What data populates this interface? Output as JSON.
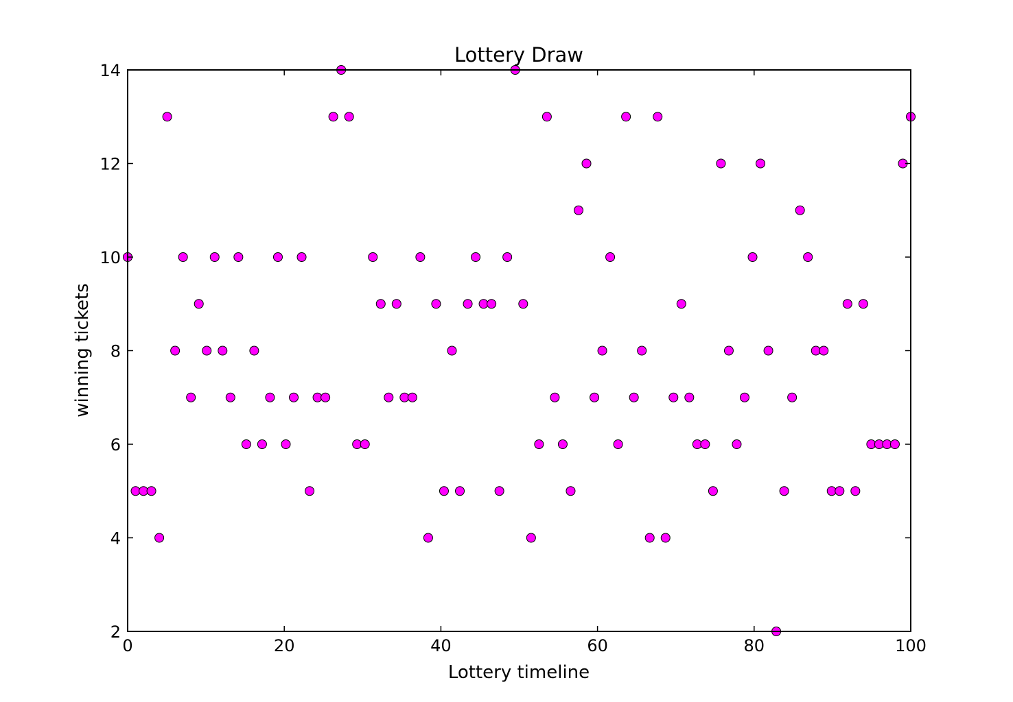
{
  "chart_data": {
    "type": "scatter",
    "title": "Lottery Draw",
    "xlabel": "Lottery timeline",
    "ylabel": "winning tickets",
    "xlim": [
      0,
      100
    ],
    "ylim": [
      2,
      14
    ],
    "x_ticks": [
      "0",
      "20",
      "40",
      "60",
      "80",
      "100"
    ],
    "y_ticks": [
      "2",
      "4",
      "6",
      "8",
      "10",
      "12",
      "14"
    ],
    "grid": false,
    "marker_color": "#ff00ff",
    "marker_edge_color": "#000000",
    "x": [
      0,
      1.01,
      2.02,
      3.03,
      4.04,
      5.05,
      6.06,
      7.07,
      8.08,
      9.09,
      10.1,
      11.11,
      12.12,
      13.13,
      14.14,
      15.15,
      16.16,
      17.17,
      18.18,
      19.19,
      20.2,
      21.21,
      22.22,
      23.23,
      24.24,
      25.25,
      26.26,
      27.27,
      28.28,
      29.29,
      30.3,
      31.31,
      32.32,
      33.33,
      34.34,
      35.35,
      36.36,
      37.37,
      38.38,
      39.39,
      40.4,
      41.41,
      42.42,
      43.43,
      44.44,
      45.45,
      46.46,
      47.47,
      48.48,
      49.49,
      50.51,
      51.52,
      52.53,
      53.54,
      54.55,
      55.56,
      56.57,
      57.58,
      58.59,
      59.6,
      60.61,
      61.62,
      62.63,
      63.64,
      64.65,
      65.66,
      66.67,
      67.68,
      68.69,
      69.7,
      70.71,
      71.72,
      72.73,
      73.74,
      74.75,
      75.76,
      76.77,
      77.78,
      78.79,
      79.8,
      80.81,
      81.82,
      82.83,
      83.84,
      84.85,
      85.86,
      86.87,
      87.88,
      88.89,
      89.9,
      90.91,
      91.92,
      92.93,
      93.94,
      94.95,
      95.96,
      96.97,
      97.98,
      98.99,
      100
    ],
    "y": [
      10,
      5,
      5,
      5,
      4,
      13,
      8,
      10,
      7,
      9,
      8,
      10,
      8,
      7,
      10,
      6,
      8,
      6,
      7,
      10,
      6,
      7,
      10,
      5,
      7,
      7,
      13,
      14,
      13,
      6,
      6,
      10,
      9,
      7,
      9,
      7,
      7,
      10,
      4,
      9,
      5,
      8,
      5,
      9,
      10,
      9,
      9,
      5,
      10,
      14,
      9,
      4,
      6,
      13,
      7,
      6,
      5,
      11,
      12,
      7,
      8,
      10,
      6,
      13,
      7,
      8,
      4,
      13,
      4,
      7,
      9,
      7,
      6,
      6,
      5,
      12,
      8,
      6,
      7,
      10,
      12,
      8,
      2,
      5,
      7,
      11,
      10,
      8,
      8,
      5,
      5,
      9,
      5,
      9,
      6,
      6,
      6,
      6,
      12,
      13
    ]
  }
}
